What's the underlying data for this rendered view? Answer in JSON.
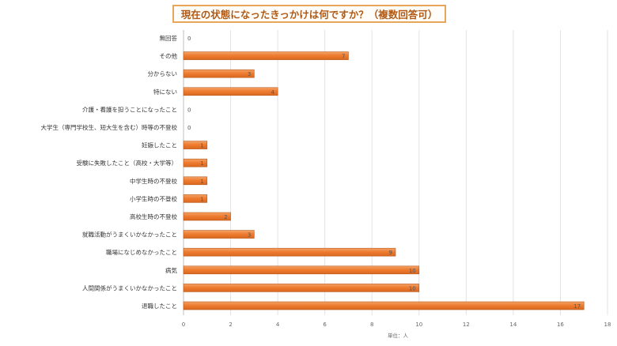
{
  "chart_data": {
    "type": "bar",
    "orientation": "horizontal",
    "title": "現在の状態になったきっかけは何ですか？（複数回答可）",
    "categories": [
      "無回答",
      "その他",
      "分からない",
      "特にない",
      "介護・看護を担うことになったこと",
      "大学生（専門学校生、短大生を含む）時等の不登校",
      "妊娠したこと",
      "受験に失敗したこと（高校・大学等）",
      "中学生時の不登校",
      "小学生時の不登校",
      "高校生時の不登校",
      "就職活動がうまくいかなかったこと",
      "職場になじめなかったこと",
      "病気",
      "人間関係がうまくいかなかったこと",
      "退職したこと"
    ],
    "values": [
      0,
      7,
      3,
      4,
      0,
      0,
      1,
      1,
      1,
      1,
      2,
      3,
      9,
      10,
      10,
      17
    ],
    "xlim": [
      0,
      18
    ],
    "xticks": [
      "0",
      "2",
      "4",
      "6",
      "8",
      "10",
      "12",
      "14",
      "16",
      "18"
    ],
    "xlabel": "単位：人",
    "grid": true,
    "bar_color": "#ee7d31",
    "bar_edge_color": "#b85a1c"
  }
}
